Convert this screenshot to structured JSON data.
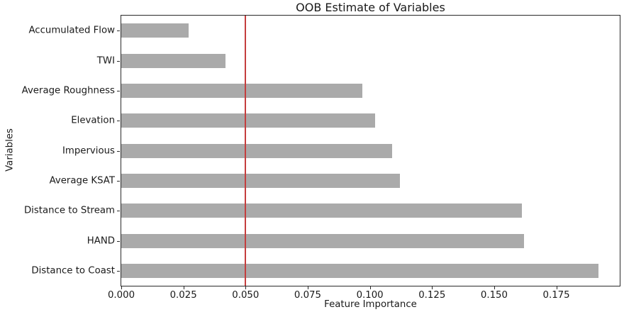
{
  "figure": {
    "background": "#ffffff",
    "frame_color": "#2a2a2a",
    "text_color": "#1a1a1a"
  },
  "chart_data": {
    "type": "bar",
    "orientation": "horizontal",
    "title": "OOB Estimate of Variables",
    "xlabel": "Feature Importance",
    "ylabel": "Variables",
    "categories": [
      "Accumulated Flow",
      "TWI",
      "Average Roughness",
      "Elevation",
      "Impervious",
      "Average KSAT",
      "Distance to Stream",
      "HAND",
      "Distance to Coast"
    ],
    "values": [
      0.027,
      0.042,
      0.097,
      0.102,
      0.109,
      0.112,
      0.161,
      0.162,
      0.192
    ],
    "bar_color": "#aaaaaa",
    "threshold_line": {
      "x": 0.05,
      "color": "#c43d3d"
    },
    "xlim": [
      0,
      0.2005
    ],
    "xticks": [
      "0.000",
      "0.025",
      "0.050",
      "0.075",
      "0.100",
      "0.125",
      "0.150",
      "0.175"
    ],
    "grid": false,
    "legend": false
  }
}
